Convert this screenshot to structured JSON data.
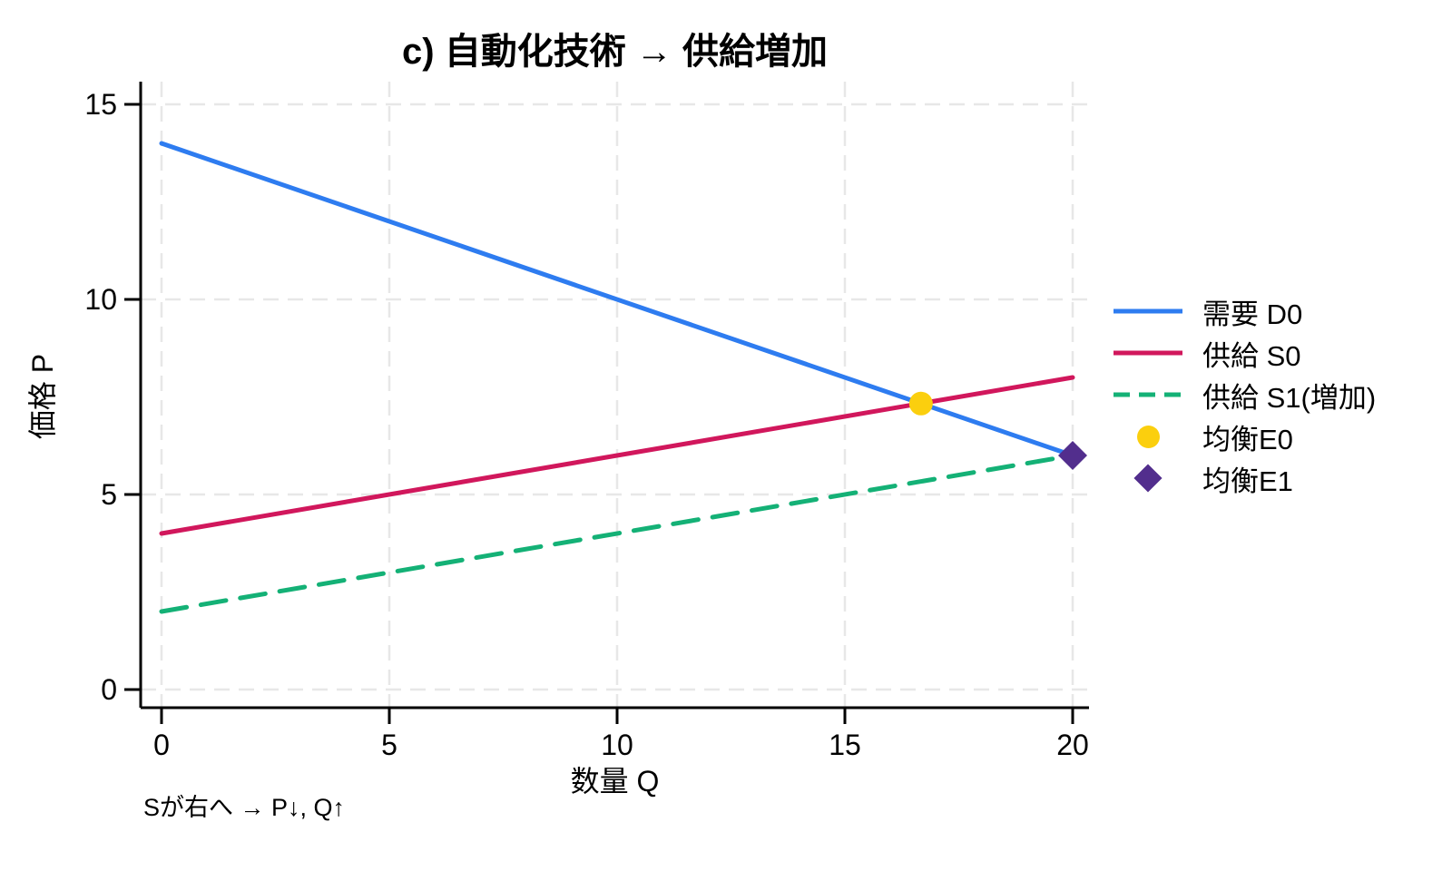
{
  "chart_data": {
    "type": "line",
    "title": "c) 自動化技術 → 供給増加",
    "xlabel": "数量 Q",
    "ylabel": "価格 P",
    "annotation": "Sが右へ → P↓, Q↑",
    "xlim": [
      -0.5,
      20.4
    ],
    "ylim": [
      -0.5,
      15.6
    ],
    "xticks": [
      0,
      5,
      10,
      15,
      20
    ],
    "yticks": [
      0,
      5,
      10,
      15
    ],
    "grid": true,
    "grid_color": "#e7e7e7",
    "axis_color": "#000000",
    "legend_position": "right-outside",
    "series": [
      {
        "key": "demand-d0",
        "name": "需要 D0",
        "style": "solid",
        "color": "#2e7cf0",
        "x": [
          0,
          20
        ],
        "y": [
          14,
          6
        ]
      },
      {
        "key": "supply-s0",
        "name": "供給 S0",
        "style": "solid",
        "color": "#d1175c",
        "x": [
          0,
          20
        ],
        "y": [
          4,
          8
        ]
      },
      {
        "key": "supply-s1",
        "name": "供給 S1(増加)",
        "style": "dashed",
        "color": "#14b176",
        "x": [
          0,
          20
        ],
        "y": [
          2,
          6
        ]
      }
    ],
    "markers": [
      {
        "key": "equilibrium-e0",
        "name": "均衡E0",
        "shape": "circle",
        "color": "#fbcf0e",
        "x": 16.67,
        "y": 7.33
      },
      {
        "key": "equilibrium-e1",
        "name": "均衡E1",
        "shape": "diamond",
        "color": "#522e8d",
        "x": 20,
        "y": 6
      }
    ]
  }
}
